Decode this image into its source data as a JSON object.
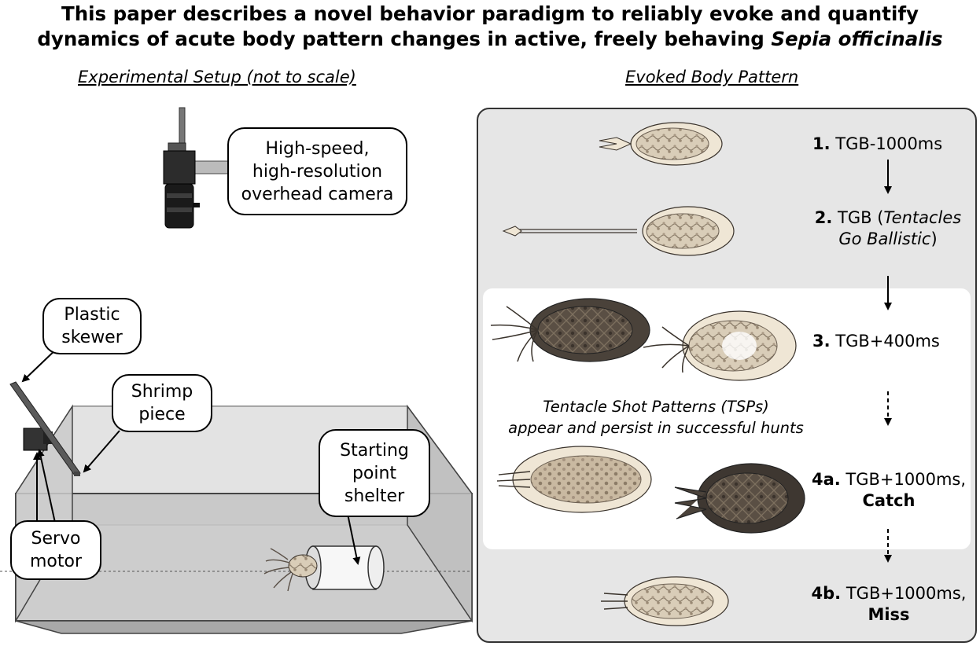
{
  "title": {
    "line1": "This paper describes a novel behavior paradigm to reliably evoke and quantify",
    "line2_prefix": "dynamics of acute body pattern changes in active, freely behaving ",
    "line2_species": "Sepia officinalis"
  },
  "left": {
    "heading": "Experimental Setup (not to scale)",
    "labels": {
      "camera": "High-speed,\nhigh-resolution\noverhead camera",
      "skewer": "Plastic\nskewer",
      "shrimp": "Shrimp\npiece",
      "shelter": "Starting\npoint\nshelter",
      "servo": "Servo\nmotor"
    }
  },
  "right": {
    "heading": "Evoked Body Pattern",
    "steps": [
      {
        "num": "1.",
        "label": "TGB-1000ms"
      },
      {
        "num": "2.",
        "label": "TGB (",
        "italic": "Tentacles",
        "italic2": "Go Ballistic",
        "close": ")"
      },
      {
        "num": "3.",
        "label": "TGB+400ms"
      },
      {
        "num": "4a.",
        "label": "TGB+1000ms,",
        "outcome": "Catch"
      },
      {
        "num": "4b.",
        "label": "TGB+1000ms,",
        "outcome": "Miss"
      }
    ],
    "tsp_note": "Tentacle Shot Patterns (TSPs)\nappear and persist in successful hunts"
  },
  "colors": {
    "panel_bg": "#e6e6e6",
    "inner_bg": "#ffffff",
    "cuttlefish_light": "#eee4d2",
    "cuttlefish_mid": "#bcae99",
    "cuttlefish_dark": "#4a423a"
  }
}
